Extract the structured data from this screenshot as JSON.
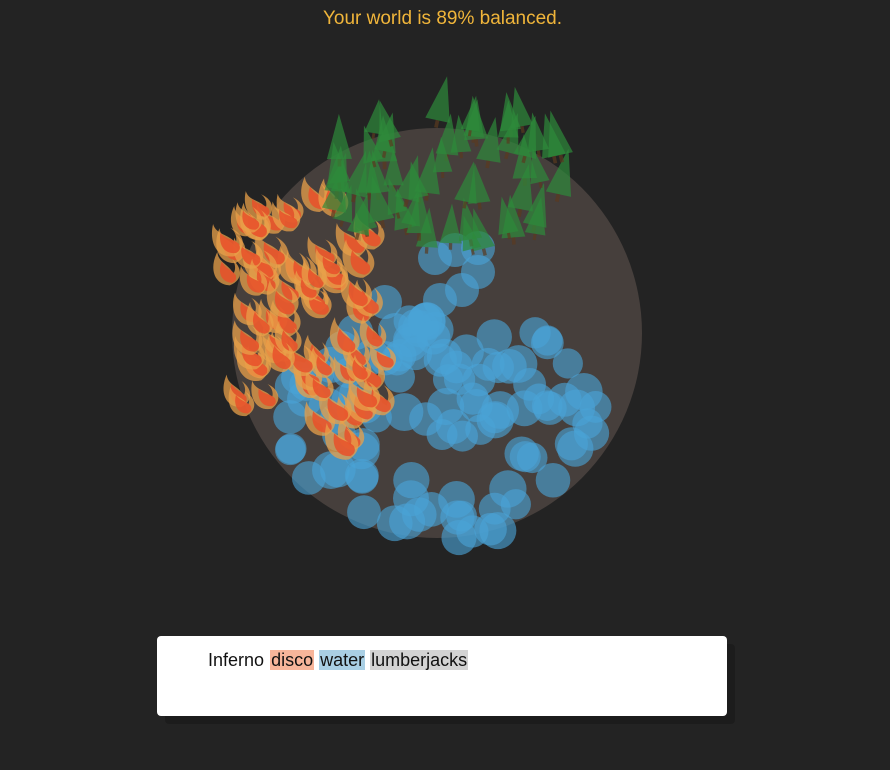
{
  "status": {
    "text": "Your world is 89% balanced.",
    "balance_percent": 89,
    "color": "#f0b53a"
  },
  "world": {
    "planet_color": "#463f3c",
    "elements": [
      {
        "name": "fire",
        "icon": "flame-icon",
        "color": "#e8502a"
      },
      {
        "name": "water",
        "icon": "water-blob-icon",
        "color": "#4aa3d6"
      },
      {
        "name": "forest",
        "icon": "tree-icon",
        "color": "#2e8a3a"
      }
    ]
  },
  "sentence": {
    "words": [
      {
        "text": "Inferno",
        "highlight": ""
      },
      {
        "text": "disco",
        "highlight": "#f7b59a"
      },
      {
        "text": "water",
        "highlight": "#a9cfe4"
      },
      {
        "text": "lumberjacks",
        "highlight": "#d3d3d3"
      }
    ]
  }
}
